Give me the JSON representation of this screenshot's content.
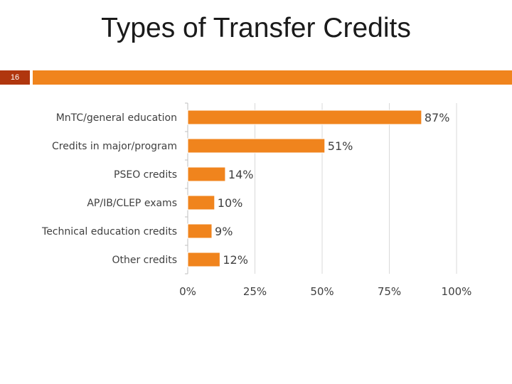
{
  "slide": {
    "title": "Types of Transfer Credits",
    "number": "16",
    "accent_color": "#f0841d",
    "number_bg_color": "#b0360e"
  },
  "chart_data": {
    "type": "bar",
    "orientation": "horizontal",
    "categories": [
      "MnTC/general education",
      "Credits in major/program",
      "PSEO credits",
      "AP/IB/CLEP exams",
      "Technical education credits",
      "Other credits"
    ],
    "values": [
      87,
      51,
      14,
      10,
      9,
      12
    ],
    "value_labels": [
      "87%",
      "51%",
      "14%",
      "10%",
      "9%",
      "12%"
    ],
    "xlim": [
      0,
      100
    ],
    "x_ticks": [
      0,
      25,
      50,
      75,
      100
    ],
    "x_tick_labels": [
      "0%",
      "25%",
      "50%",
      "75%",
      "100%"
    ],
    "grid": true,
    "bar_color": "#f0841d",
    "title": "",
    "xlabel": "",
    "ylabel": ""
  }
}
